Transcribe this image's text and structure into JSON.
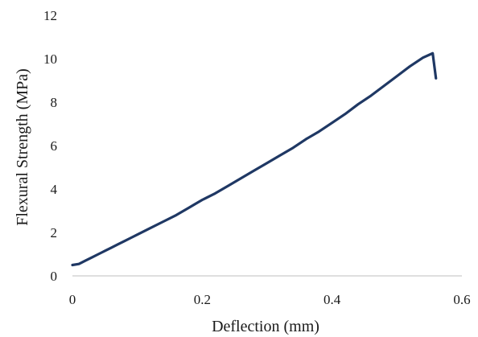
{
  "chart_data": {
    "type": "line",
    "title": "",
    "xlabel": "Deflection (mm)",
    "ylabel": "Flexural Strength (MPa)",
    "xlim": [
      0,
      0.6
    ],
    "ylim": [
      0,
      12
    ],
    "xticks": [
      0,
      0.2,
      0.4,
      0.6
    ],
    "xtick_labels": [
      "0",
      "0.2",
      "0.4",
      "0.6"
    ],
    "yticks": [
      0,
      2,
      4,
      6,
      8,
      10,
      12
    ],
    "ytick_labels": [
      "0",
      "2",
      "4",
      "6",
      "8",
      "10",
      "12"
    ],
    "grid": false,
    "legend": "none",
    "series": [
      {
        "color": "#1f3864",
        "x": [
          0,
          0.01,
          0.02,
          0.03,
          0.04,
          0.05,
          0.06,
          0.07,
          0.08,
          0.09,
          0.1,
          0.12,
          0.14,
          0.16,
          0.18,
          0.2,
          0.22,
          0.24,
          0.26,
          0.28,
          0.3,
          0.32,
          0.34,
          0.36,
          0.38,
          0.4,
          0.42,
          0.44,
          0.46,
          0.48,
          0.5,
          0.52,
          0.54,
          0.555,
          0.56
        ],
        "y": [
          0.5,
          0.55,
          0.7,
          0.85,
          1.0,
          1.15,
          1.3,
          1.45,
          1.6,
          1.75,
          1.9,
          2.2,
          2.5,
          2.8,
          3.15,
          3.5,
          3.8,
          4.15,
          4.5,
          4.85,
          5.2,
          5.55,
          5.9,
          6.3,
          6.65,
          7.05,
          7.45,
          7.9,
          8.3,
          8.75,
          9.2,
          9.65,
          10.05,
          10.25,
          9.1
        ]
      }
    ]
  }
}
